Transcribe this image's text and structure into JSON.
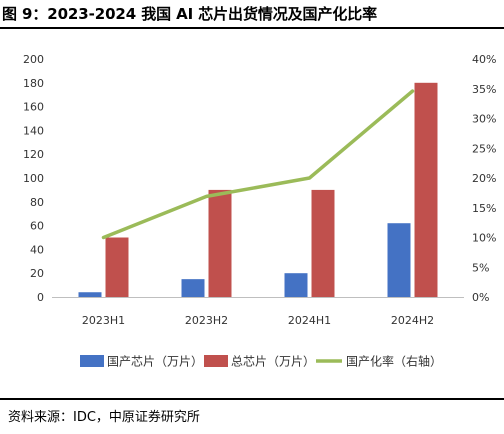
{
  "title": "图 9：2023-2024 我国 AI 芯片出货情况及国产化比率",
  "source": "资料来源：IDC，中原证券研究所",
  "chart_data": {
    "type": "bar",
    "categories": [
      "2023H1",
      "2023H2",
      "2024H1",
      "2024H2"
    ],
    "series": [
      {
        "name": "国产芯片（万片）",
        "kind": "bar",
        "axis": "left",
        "color": "#4472C4",
        "values": [
          4,
          15,
          20,
          62
        ]
      },
      {
        "name": "总芯片（万片）",
        "kind": "bar",
        "axis": "left",
        "color": "#C0504D",
        "values": [
          50,
          90,
          90,
          180
        ]
      },
      {
        "name": "国产化率（右轴）",
        "kind": "line",
        "axis": "right",
        "color": "#9BBB59",
        "values": [
          10,
          16.9,
          20,
          34.6
        ]
      }
    ],
    "ylim_left": [
      0,
      200
    ],
    "yticks_left": [
      "0",
      "20",
      "40",
      "60",
      "80",
      "100",
      "120",
      "140",
      "160",
      "180",
      "200"
    ],
    "ylim_right": [
      0,
      40
    ],
    "yticks_right": [
      "0%",
      "5%",
      "10%",
      "15%",
      "20%",
      "25%",
      "30%",
      "35%",
      "40%"
    ],
    "grid": false,
    "legend_position": "bottom"
  }
}
